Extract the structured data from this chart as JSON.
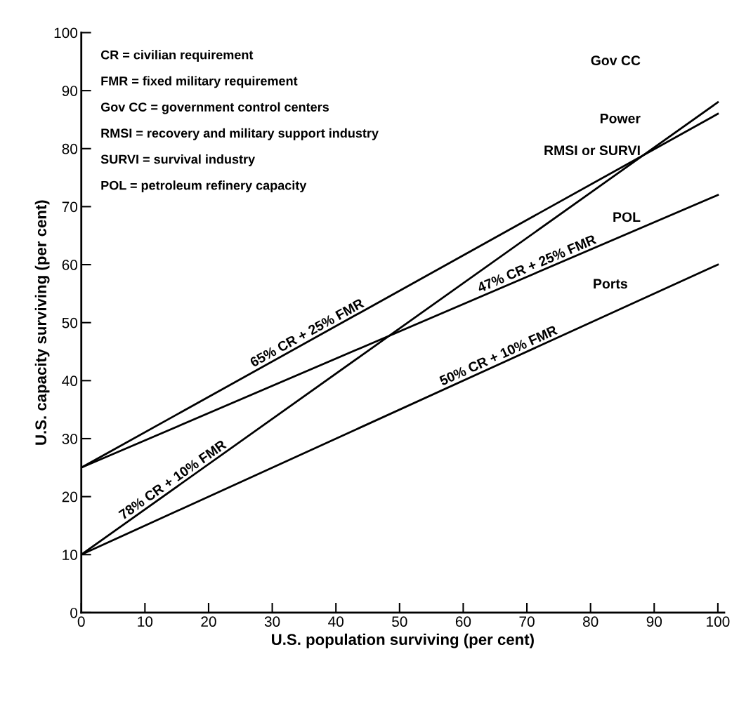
{
  "chart_data": {
    "type": "line",
    "xlabel": "U.S. population surviving (per cent)",
    "ylabel": "U.S. capacity surviving (per cent)",
    "x": [
      0,
      100
    ],
    "series": [
      {
        "name": "65% CR + 25% FMR",
        "color": "#000000",
        "values": [
          25,
          86
        ]
      },
      {
        "name": "78% CR + 10% FMR",
        "color": "#000000",
        "values": [
          10,
          88
        ]
      },
      {
        "name": "47% CR + 25% FMR",
        "color": "#000000",
        "values": [
          25,
          72
        ]
      },
      {
        "name": "50% CR + 10% FMR",
        "color": "#000000",
        "values": [
          10,
          60
        ]
      }
    ],
    "xlim": [
      0,
      101
    ],
    "ylim": [
      0,
      100
    ],
    "xticks": [
      0,
      10,
      20,
      30,
      40,
      50,
      60,
      70,
      80,
      90,
      100
    ],
    "yticks": [
      0,
      10,
      20,
      30,
      40,
      50,
      60,
      70,
      80,
      90,
      100
    ],
    "grid": false,
    "legend": false,
    "marker": "none",
    "line_style": "solid",
    "annotations": [
      "CR = civilian requirement",
      "FMR = fixed military requirement",
      "Gov CC = government control centers",
      "RMSI = recovery and military support industry",
      "SURVI = survival industry",
      "POL = petroleum refinery capacity",
      "Gov CC",
      "Power",
      "RMSI or SURVI",
      "POL",
      "Ports"
    ]
  }
}
